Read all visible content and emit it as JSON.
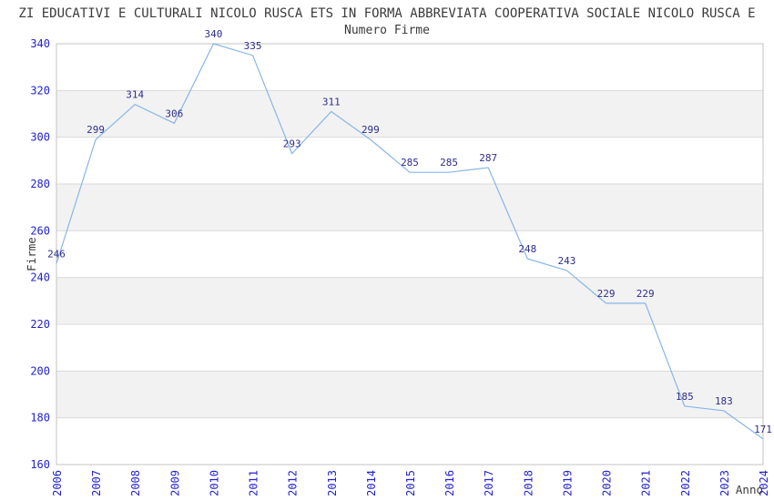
{
  "colors": {
    "series_line": "#87b6e8",
    "axis_tick_label": "#2323cc",
    "data_label": "#2e2e8c",
    "heading_text": "#3a3a3a",
    "band_fill": "#f2f2f2",
    "gridline": "#d9d9d9",
    "plot_border": "#c3c3c3",
    "background": "#ffffff"
  },
  "chart_data": {
    "type": "line",
    "title": "ZI EDUCATIVI E CULTURALI NICOLO RUSCA ETS IN FORMA ABBREVIATA COOPERATIVA SOCIALE NICOLO RUSCA E",
    "subtitle": "Numero Firme",
    "xlabel": "Anno",
    "ylabel": "Firme",
    "categories": [
      "2006",
      "2007",
      "2008",
      "2009",
      "2010",
      "2011",
      "2012",
      "2013",
      "2014",
      "2015",
      "2016",
      "2017",
      "2018",
      "2019",
      "2020",
      "2021",
      "2022",
      "2023",
      "2024"
    ],
    "values": [
      246,
      299,
      314,
      306,
      340,
      335,
      293,
      311,
      299,
      285,
      285,
      287,
      248,
      243,
      229,
      229,
      185,
      183,
      171
    ],
    "series_name": "Numero Firme",
    "ylim": [
      160,
      340
    ],
    "ytick_step": 20,
    "yticks": [
      160,
      180,
      200,
      220,
      240,
      260,
      280,
      300,
      320,
      340
    ],
    "x_tick_rotation": 90,
    "grid": "horizontal",
    "banded_background": true,
    "data_labels_shown": true,
    "legend": "none"
  }
}
